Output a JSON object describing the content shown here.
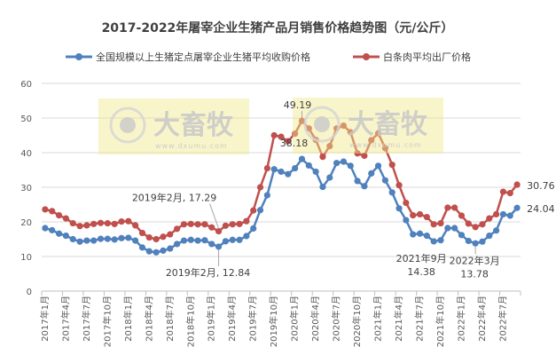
{
  "chart_data": {
    "type": "line",
    "title": "2017-2022年屠宰企业生猪产品月销售价格趋势图（元/公斤）",
    "xlabel": "",
    "ylabel": "",
    "ylim": [
      0,
      60
    ],
    "yticks": [
      0,
      10,
      20,
      30,
      40,
      50,
      60
    ],
    "grid": true,
    "legend_position": "top",
    "x_tick_labels": [
      "2017年1月",
      "2017年4月",
      "2017年7月",
      "2017年10月",
      "2018年1月",
      "2018年4月",
      "2018年7月",
      "2018年10月",
      "2019年1月",
      "2019年4月",
      "2019年7月",
      "2019年10月",
      "2020年1月",
      "2020年4月",
      "2020年7月",
      "2020年10月",
      "2021年1月",
      "2021年4月",
      "2021年7月",
      "2021年10月",
      "2022年1月",
      "2022年4月",
      "2022年7月"
    ],
    "x_start": "2017-01",
    "x_end": "2022-09",
    "series": [
      {
        "name": "全国规模以上生猪定点屠宰企业生猪平均收购价格",
        "color": "#4f81bd",
        "values": [
          18.2,
          17.6,
          16.6,
          16.0,
          15.0,
          14.3,
          14.6,
          14.6,
          15.1,
          15.1,
          14.9,
          15.3,
          15.4,
          14.6,
          12.6,
          11.5,
          11.2,
          11.7,
          12.3,
          13.6,
          14.6,
          14.8,
          14.6,
          14.7,
          13.6,
          12.84,
          14.4,
          14.8,
          14.8,
          15.9,
          18.1,
          23.4,
          27.7,
          35.2,
          34.5,
          33.8,
          35.5,
          38.18,
          36.3,
          34.5,
          30.1,
          32.8,
          37.0,
          37.4,
          36.2,
          31.8,
          30.3,
          34.0,
          36.2,
          32.0,
          28.5,
          23.9,
          20.5,
          16.4,
          16.6,
          16.0,
          14.38,
          14.7,
          18.2,
          18.2,
          16.2,
          14.5,
          13.78,
          14.3,
          16.0,
          17.5,
          22.2,
          21.8,
          24.04
        ]
      },
      {
        "name": "白条肉平均出厂价格",
        "color": "#c0504d",
        "values": [
          23.6,
          23.1,
          21.9,
          21.0,
          19.6,
          18.8,
          19.0,
          19.4,
          19.7,
          19.6,
          19.4,
          20.1,
          20.2,
          19.0,
          16.8,
          15.5,
          15.0,
          15.7,
          16.4,
          18.0,
          19.3,
          19.4,
          19.3,
          19.3,
          18.4,
          17.29,
          18.9,
          19.3,
          19.4,
          20.2,
          23.3,
          30.0,
          35.5,
          45.0,
          44.6,
          43.3,
          45.5,
          49.19,
          47.0,
          43.7,
          38.8,
          41.9,
          47.0,
          47.8,
          45.9,
          39.8,
          39.1,
          43.6,
          45.6,
          41.3,
          36.5,
          30.6,
          25.5,
          21.9,
          22.2,
          21.4,
          19.3,
          19.6,
          24.1,
          24.1,
          21.8,
          19.5,
          18.5,
          19.3,
          21.0,
          22.2,
          28.7,
          28.3,
          30.76
        ]
      }
    ],
    "annotations": [
      {
        "series": 1,
        "index": 25,
        "lines": [
          "2019年2月, 17.29"
        ]
      },
      {
        "series": 0,
        "index": 25,
        "lines": [
          "2019年2月, 12.84"
        ]
      },
      {
        "series": 1,
        "index": 37,
        "lines": [
          "49.19"
        ]
      },
      {
        "series": 0,
        "index": 37,
        "lines": [
          "38.18"
        ]
      },
      {
        "series": 0,
        "index": 56,
        "lines": [
          "2021年9月",
          "14.38"
        ]
      },
      {
        "series": 0,
        "index": 62,
        "lines": [
          "2022年3月",
          "13.78"
        ]
      },
      {
        "series": 1,
        "index": 68,
        "lines": [
          "30.76"
        ]
      },
      {
        "series": 0,
        "index": 68,
        "lines": [
          "24.04"
        ]
      }
    ]
  },
  "watermark": {
    "name": "大畜牧",
    "url": "www.dxumu.com"
  }
}
